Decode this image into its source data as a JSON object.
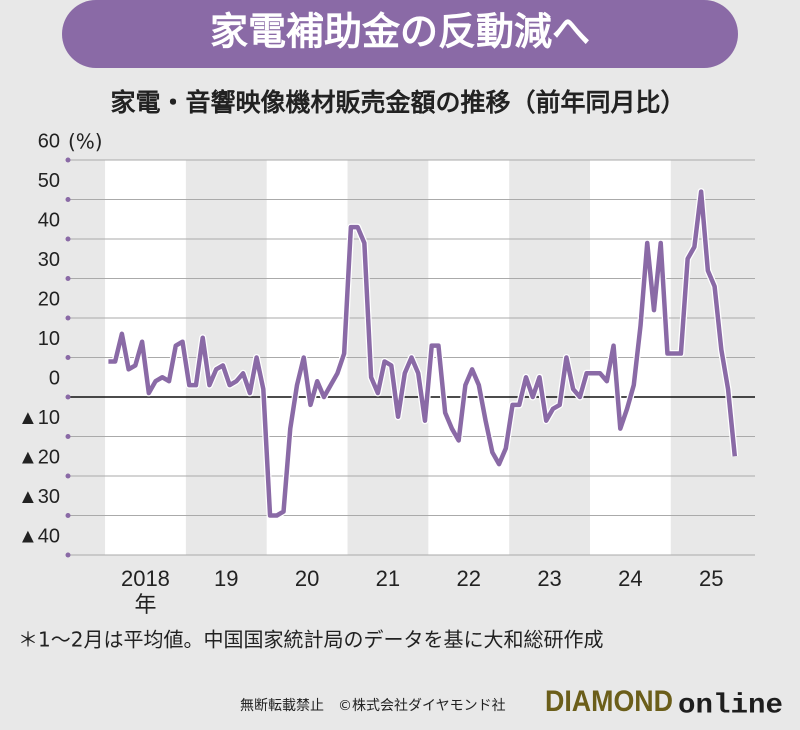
{
  "chart_data": {
    "type": "line",
    "title": "家電補助金の反動減へ",
    "subtitle": "家電・音響映像機材販売金額の推移（前年同月比）",
    "y_unit": "(%)",
    "x": [
      0,
      1,
      2,
      3,
      4,
      5,
      6,
      7,
      8,
      9,
      10,
      11,
      12,
      13,
      14,
      15,
      16,
      17,
      18,
      19,
      20,
      21,
      22,
      23,
      24,
      25,
      26,
      27,
      28,
      29,
      30,
      31,
      32,
      33,
      34,
      35,
      36,
      37,
      38,
      39,
      40,
      41,
      42,
      43,
      44,
      45,
      46,
      47,
      48,
      49,
      50,
      51,
      52,
      53,
      54,
      55,
      56,
      57,
      58,
      59,
      60,
      61,
      62,
      63,
      64,
      65,
      66,
      67,
      68,
      69,
      70,
      71,
      72,
      73,
      74,
      75,
      76,
      77,
      78,
      79,
      80,
      81,
      82,
      83,
      84,
      85,
      86,
      87,
      88,
      89,
      90,
      91,
      92,
      93
    ],
    "series": [
      {
        "name": "前年同月比",
        "color": "#8a6aa6",
        "values": [
          9,
          9,
          16,
          7,
          8,
          14,
          1,
          4,
          5,
          4,
          13,
          14,
          3,
          3,
          15,
          3,
          7,
          8,
          3,
          4,
          6,
          1,
          10,
          2,
          -30,
          -30,
          -29,
          -8,
          3,
          10,
          -2,
          4,
          0,
          3,
          6,
          11,
          43,
          43,
          39,
          5,
          1,
          9,
          8,
          -5,
          6,
          10,
          6,
          -6,
          13,
          13,
          -4,
          -8,
          -11,
          3,
          7,
          3,
          -6,
          -14,
          -17,
          -13,
          -2,
          -2,
          5,
          0,
          5,
          -6,
          -3,
          -2,
          10,
          2,
          0,
          6,
          6,
          6,
          4,
          13,
          -8,
          -3,
          3,
          18,
          39,
          22,
          39,
          11,
          11,
          11,
          35,
          38,
          52,
          32,
          28,
          12,
          2,
          -15
        ]
      }
    ],
    "xlim": [
      -6,
      96
    ],
    "xticks": [
      {
        "value": 5.5,
        "label": "2018年"
      },
      {
        "value": 17.5,
        "label": "19"
      },
      {
        "value": 29.5,
        "label": "20"
      },
      {
        "value": 41.5,
        "label": "21"
      },
      {
        "value": 53.5,
        "label": "22"
      },
      {
        "value": 65.5,
        "label": "23"
      },
      {
        "value": 77.5,
        "label": "24"
      },
      {
        "value": 89.5,
        "label": "25"
      }
    ],
    "ylim": [
      -40,
      60
    ],
    "yticks": [
      60,
      50,
      40,
      30,
      20,
      10,
      0,
      {
        "value": -10,
        "label": "▲10"
      },
      {
        "value": -20,
        "label": "▲20"
      },
      {
        "value": -30,
        "label": "▲30"
      },
      {
        "value": -40,
        "label": "▲40"
      }
    ],
    "grid": true,
    "note": "＊1〜2月は平均値。中国国家統計局のデータを基に大和総研作成",
    "copyright": "無断転載禁止　©株式会社ダイヤモンド社",
    "logo_main": "DIAMOND",
    "logo_sub": "online"
  }
}
